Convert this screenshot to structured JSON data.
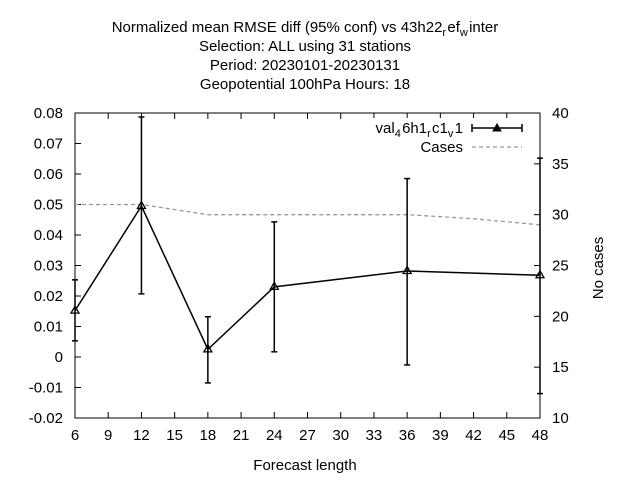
{
  "chart_data": {
    "type": "line",
    "title_lines": [
      "Normalized mean RMSE diff (95% conf) vs 43h22_ref_winter",
      "Selection: ALL using    31 stations",
      "Period: 20230101-20230131",
      "Geopotential 100hPa   Hours:  18"
    ],
    "xlabel": "Forecast length",
    "ylabel": "",
    "y2label": "No cases",
    "xlim": [
      6,
      48
    ],
    "ylim": [
      -0.02,
      0.08
    ],
    "y2lim": [
      10,
      40
    ],
    "x_ticks": [
      6,
      9,
      12,
      15,
      18,
      21,
      24,
      27,
      30,
      33,
      36,
      39,
      42,
      45,
      48
    ],
    "y_ticks": [
      -0.02,
      -0.01,
      0,
      0.01,
      0.02,
      0.03,
      0.04,
      0.05,
      0.06,
      0.07,
      0.08
    ],
    "y_tick_labels": [
      "-0.02",
      "-0.01",
      "0",
      "0.01",
      "0.02",
      "0.03",
      "0.04",
      "0.05",
      "0.06",
      "0.07",
      "0.08"
    ],
    "y2_ticks": [
      10,
      15,
      20,
      25,
      30,
      35,
      40
    ],
    "grid": false,
    "legend_position": "top-right",
    "series": [
      {
        "name": "val_46h1_rc1_v1",
        "axis": "left",
        "style": "solid line with triangle markers and error bars",
        "color": "#000000",
        "x": [
          6,
          12,
          18,
          24,
          36,
          48
        ],
        "y": [
          0.0152,
          0.0495,
          0.0025,
          0.023,
          0.0282,
          0.0268
        ],
        "error_low": [
          0.0053,
          0.0207,
          -0.0085,
          0.0017,
          -0.0026,
          -0.012
        ],
        "error_high": [
          0.0253,
          0.0787,
          0.0132,
          0.0443,
          0.0585,
          0.0652
        ]
      },
      {
        "name": "Cases",
        "axis": "right",
        "style": "dashed line",
        "color": "#999999",
        "x": [
          6,
          12,
          18,
          24,
          30,
          36,
          42,
          48
        ],
        "y": [
          31,
          31,
          30,
          30,
          30,
          30,
          29.6,
          29
        ]
      }
    ]
  }
}
